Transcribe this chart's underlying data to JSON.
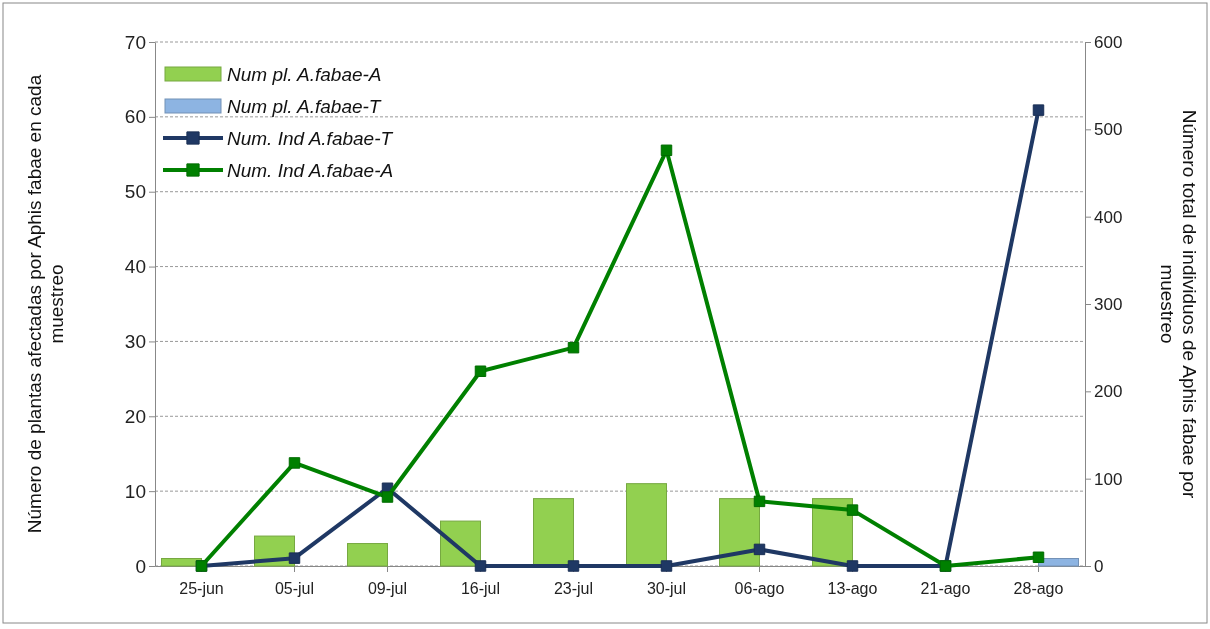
{
  "chart_data": {
    "type": "bar",
    "ylabel": "Número de plantas afectadas por Aphis fabae en cada muestreo",
    "y2label": "Número total de  individuos de Aphis fabae por muestreo",
    "categories": [
      "25-jun",
      "05-jul",
      "09-jul",
      "16-jul",
      "23-jul",
      "30-jul",
      "06-ago",
      "13-ago",
      "21-ago",
      "28-ago"
    ],
    "series": [
      {
        "name": "Num pl. A.fabae-A",
        "color": "#92d050",
        "values": [
          1,
          4,
          3,
          6,
          9,
          11,
          9,
          9,
          null,
          0
        ]
      },
      {
        "name": "Num pl. A.fabae-T",
        "color": "#8db4e2",
        "values": [
          0,
          0,
          0,
          0,
          0,
          0,
          0,
          0,
          0,
          1
        ]
      },
      {
        "name": "Num. Ind A.fabae-T",
        "type": "line",
        "axis": "y2",
        "color": "#1f3864",
        "values": [
          0,
          9,
          89,
          0,
          0,
          0,
          19,
          0,
          0,
          522
        ]
      },
      {
        "name": "Num. Ind A.fabae-A",
        "type": "line",
        "axis": "y2",
        "color": "#008000",
        "values": [
          0,
          118,
          79,
          223,
          250,
          476,
          74,
          64,
          0,
          10
        ]
      }
    ],
    "ylim": [
      0,
      70
    ],
    "yticks": [
      0,
      10,
      20,
      30,
      40,
      50,
      60,
      70
    ],
    "y2lim": [
      0,
      600
    ],
    "y2ticks": [
      0,
      100,
      200,
      300,
      400,
      500,
      600
    ],
    "grid": "y",
    "legend": "top left",
    "marker": "square",
    "line_style": "solid"
  }
}
